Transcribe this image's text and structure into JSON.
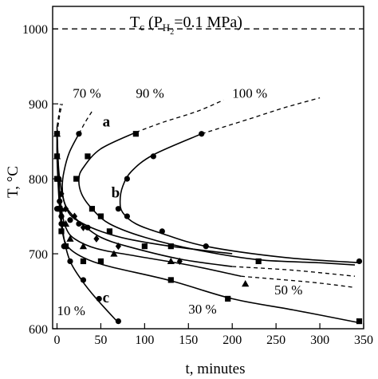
{
  "chart_data": {
    "type": "scatter",
    "title": "",
    "xlabel": "t, minutes",
    "ylabel": "T, °C",
    "xlim": [
      -5,
      350
    ],
    "ylim": [
      600,
      1030
    ],
    "xticks": [
      0,
      50,
      100,
      150,
      200,
      250,
      300,
      350
    ],
    "yticks": [
      600,
      700,
      800,
      900,
      1000
    ],
    "xticklabels": [
      "0",
      "50",
      "100",
      "150",
      "200",
      "250",
      "300",
      "350"
    ],
    "yticklabels": [
      "600",
      "700",
      "800",
      "900",
      "1000"
    ],
    "grid": false,
    "reference_line": {
      "y": 1000,
      "label_prefix": "T",
      "label_sub": "c",
      "label_mid": " (P",
      "label_sub2": "H",
      "label_sub3": "2",
      "label_suffix": "=0.1 MPa)"
    },
    "curve_labels": [
      {
        "text": "70 %",
        "x": 18,
        "y": 908
      },
      {
        "text": "90 %",
        "x": 90,
        "y": 908
      },
      {
        "text": "100 %",
        "x": 200,
        "y": 908
      },
      {
        "text": "a",
        "x": 52,
        "y": 870
      },
      {
        "text": "b",
        "x": 62,
        "y": 775
      },
      {
        "text": "c",
        "x": 52,
        "y": 635
      },
      {
        "text": "50 %",
        "x": 248,
        "y": 646
      },
      {
        "text": "30 %",
        "x": 150,
        "y": 620
      },
      {
        "text": "10 %",
        "x": 0,
        "y": 618
      }
    ],
    "series": [
      {
        "name": "10 %",
        "marker": "circle",
        "points": [
          [
            0,
            860
          ],
          [
            0,
            830
          ],
          [
            2,
            800
          ],
          [
            3,
            770
          ],
          [
            5,
            740
          ],
          [
            8,
            710
          ],
          [
            15,
            690
          ],
          [
            30,
            665
          ],
          [
            48,
            640
          ],
          [
            70,
            610
          ]
        ],
        "curve": [
          [
            0,
            870
          ],
          [
            1,
            830
          ],
          [
            2,
            800
          ],
          [
            4,
            760
          ],
          [
            8,
            720
          ],
          [
            15,
            690
          ],
          [
            28,
            665
          ],
          [
            45,
            640
          ],
          [
            70,
            608
          ]
        ],
        "extension": [
          [
            0,
            870
          ],
          [
            2,
            885
          ],
          [
            4,
            900
          ]
        ]
      },
      {
        "name": "30 %",
        "marker": "square",
        "points": [
          [
            0,
            860
          ],
          [
            0,
            830
          ],
          [
            0,
            800
          ],
          [
            3,
            760
          ],
          [
            5,
            730
          ],
          [
            10,
            710
          ],
          [
            30,
            690
          ],
          [
            50,
            690
          ],
          [
            130,
            665
          ],
          [
            195,
            640
          ],
          [
            345,
            610
          ]
        ],
        "curve": [
          [
            0,
            860
          ],
          [
            0,
            830
          ],
          [
            1,
            800
          ],
          [
            3,
            760
          ],
          [
            6,
            730
          ],
          [
            12,
            710
          ],
          [
            30,
            695
          ],
          [
            60,
            683
          ],
          [
            130,
            664
          ],
          [
            200,
            640
          ],
          [
            270,
            625
          ],
          [
            345,
            608
          ]
        ],
        "extension": [
          [
            0,
            860
          ],
          [
            3,
            885
          ],
          [
            6,
            900
          ]
        ]
      },
      {
        "name": "50 %",
        "marker": "triangle",
        "points": [
          [
            0,
            860
          ],
          [
            0,
            830
          ],
          [
            2,
            800
          ],
          [
            5,
            760
          ],
          [
            10,
            740
          ],
          [
            15,
            720
          ],
          [
            30,
            710
          ],
          [
            65,
            700
          ],
          [
            130,
            690
          ],
          [
            215,
            660
          ]
        ],
        "curve": [
          [
            0,
            860
          ],
          [
            2,
            800
          ],
          [
            5,
            760
          ],
          [
            10,
            735
          ],
          [
            20,
            720
          ],
          [
            45,
            707
          ],
          [
            90,
            697
          ],
          [
            150,
            685
          ],
          [
            210,
            670
          ]
        ],
        "extension": [
          [
            210,
            670
          ],
          [
            290,
            662
          ],
          [
            340,
            655
          ]
        ]
      },
      {
        "name": "70 %",
        "marker": "diamond",
        "points": [
          [
            0,
            860
          ],
          [
            0,
            830
          ],
          [
            2,
            800
          ],
          [
            5,
            780
          ],
          [
            10,
            760
          ],
          [
            20,
            750
          ],
          [
            30,
            735
          ],
          [
            45,
            720
          ],
          [
            70,
            710
          ],
          [
            140,
            690
          ]
        ],
        "curve": [
          [
            0,
            860
          ],
          [
            1,
            830
          ],
          [
            3,
            800
          ],
          [
            8,
            770
          ],
          [
            15,
            755
          ],
          [
            30,
            738
          ],
          [
            50,
            722
          ],
          [
            80,
            710
          ],
          [
            140,
            693
          ],
          [
            200,
            683
          ]
        ],
        "extension": [
          [
            200,
            683
          ],
          [
            270,
            678
          ],
          [
            340,
            670
          ]
        ]
      },
      {
        "name": "90 %",
        "marker": "square",
        "points": [
          [
            90,
            860
          ],
          [
            35,
            830
          ],
          [
            22,
            800
          ],
          [
            40,
            760
          ],
          [
            50,
            750
          ],
          [
            60,
            730
          ],
          [
            100,
            710
          ],
          [
            130,
            710
          ],
          [
            230,
            690
          ]
        ],
        "curve": [
          [
            90,
            862
          ],
          [
            50,
            840
          ],
          [
            30,
            815
          ],
          [
            25,
            800
          ],
          [
            28,
            780
          ],
          [
            40,
            760
          ],
          [
            60,
            740
          ],
          [
            100,
            722
          ],
          [
            160,
            705
          ],
          [
            230,
            692
          ],
          [
            300,
            688
          ],
          [
            340,
            685
          ]
        ],
        "extension": [
          [
            90,
            862
          ],
          [
            120,
            875
          ],
          [
            160,
            890
          ],
          [
            190,
            905
          ]
        ]
      },
      {
        "name": "100 %",
        "marker": "circle",
        "points": [
          [
            165,
            860
          ],
          [
            110,
            830
          ],
          [
            80,
            800
          ],
          [
            70,
            760
          ],
          [
            80,
            750
          ],
          [
            120,
            730
          ],
          [
            170,
            710
          ],
          [
            345,
            690
          ]
        ],
        "curve": [
          [
            165,
            860
          ],
          [
            110,
            832
          ],
          [
            85,
            810
          ],
          [
            75,
            790
          ],
          [
            72,
            770
          ],
          [
            75,
            755
          ],
          [
            90,
            740
          ],
          [
            120,
            727
          ],
          [
            170,
            710
          ],
          [
            260,
            695
          ],
          [
            345,
            688
          ]
        ],
        "extension": [
          [
            165,
            860
          ],
          [
            220,
            880
          ],
          [
            260,
            895
          ],
          [
            300,
            908
          ]
        ]
      },
      {
        "name": "a",
        "marker": "circle",
        "points": [
          [
            25,
            860
          ],
          [
            0,
            860
          ],
          [
            0,
            830
          ],
          [
            0,
            800
          ],
          [
            0,
            760
          ],
          [
            5,
            750
          ],
          [
            15,
            745
          ],
          [
            25,
            740
          ],
          [
            35,
            735
          ]
        ],
        "curve": [
          [
            25,
            860
          ],
          [
            14,
            835
          ],
          [
            8,
            810
          ],
          [
            6,
            790
          ],
          [
            8,
            770
          ],
          [
            15,
            752
          ],
          [
            30,
            740
          ],
          [
            50,
            730
          ],
          [
            80,
            720
          ],
          [
            130,
            710
          ],
          [
            200,
            700
          ]
        ],
        "extension": [
          [
            25,
            860
          ],
          [
            32,
            875
          ],
          [
            40,
            890
          ]
        ]
      }
    ]
  }
}
